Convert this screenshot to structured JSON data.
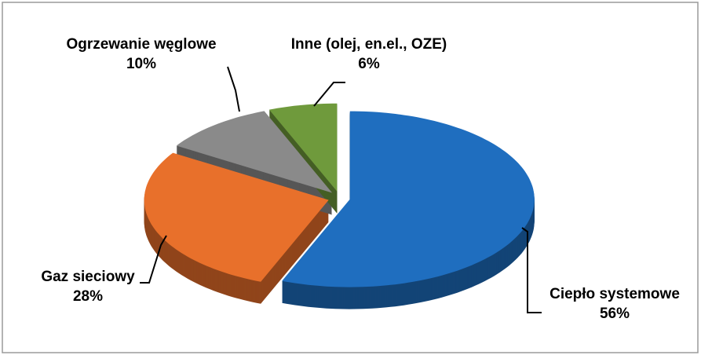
{
  "chart_data": {
    "type": "pie",
    "categories": [
      "Ciepło systemowe",
      "Gaz sieciowy",
      "Ogrzewanie węglowe",
      "Inne (olej, en.el., OZE)"
    ],
    "values": [
      56,
      28,
      10,
      6
    ],
    "value_labels": [
      "56%",
      "28%",
      "10%",
      "6%"
    ],
    "colors": [
      "#1f6ebf",
      "#e8702b",
      "#8a8a8a",
      "#6f9a3c"
    ]
  }
}
